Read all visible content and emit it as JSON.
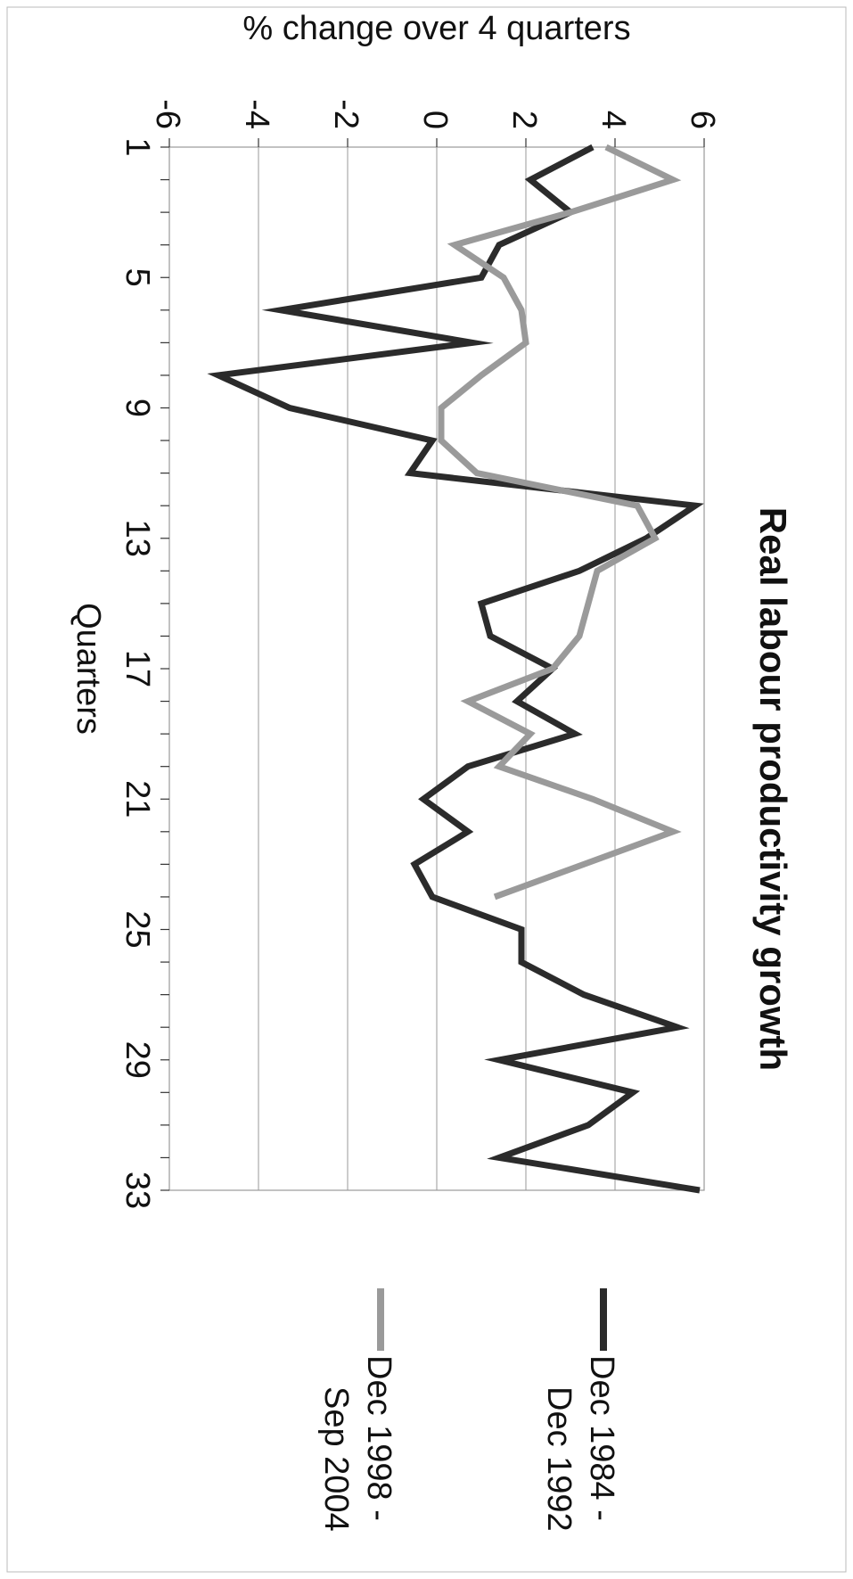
{
  "chart_data": {
    "type": "line",
    "title": "Real labour productivity growth",
    "xlabel": "Quarters",
    "ylabel": "% change over 4 quarters",
    "xlim": [
      1,
      33
    ],
    "ylim": [
      -6,
      6
    ],
    "x_ticks": [
      1,
      5,
      9,
      13,
      17,
      21,
      25,
      29,
      33
    ],
    "y_ticks": [
      6,
      4,
      2,
      0,
      -2,
      -4,
      -6
    ],
    "grid": true,
    "legend_position": "right",
    "series": [
      {
        "name": "Dec 1984 - Dec 1992",
        "color": "#2b2b2b",
        "x": [
          1,
          2,
          3,
          4,
          5,
          6,
          7,
          8,
          9,
          10,
          11,
          12,
          13,
          14,
          15,
          16,
          17,
          18,
          19,
          20,
          21,
          22,
          23,
          24,
          25,
          26,
          27,
          28,
          29,
          30,
          31,
          32,
          33
        ],
        "y": [
          3.5,
          2.1,
          3.0,
          1.4,
          1.0,
          -3.5,
          0.8,
          -4.9,
          -3.3,
          -0.1,
          -0.6,
          5.8,
          4.7,
          3.2,
          1.0,
          1.2,
          2.6,
          1.8,
          3.1,
          0.7,
          -0.3,
          0.7,
          -0.5,
          -0.1,
          1.9,
          1.9,
          3.3,
          5.4,
          1.4,
          4.4,
          3.4,
          1.4,
          5.9
        ]
      },
      {
        "name": "Dec 1998 - Sep 2004",
        "color": "#9a9a9a",
        "x": [
          1,
          2,
          3,
          4,
          5,
          6,
          7,
          8,
          9,
          10,
          11,
          12,
          13,
          14,
          15,
          16,
          17,
          18,
          19,
          20,
          21,
          22,
          23,
          24
        ],
        "y": [
          3.8,
          5.3,
          3.0,
          0.4,
          1.5,
          1.9,
          2.0,
          1.0,
          0.1,
          0.1,
          0.9,
          4.5,
          4.9,
          3.6,
          3.4,
          3.2,
          2.6,
          0.7,
          2.1,
          1.4,
          3.5,
          5.3,
          3.3,
          1.3
        ]
      }
    ]
  }
}
